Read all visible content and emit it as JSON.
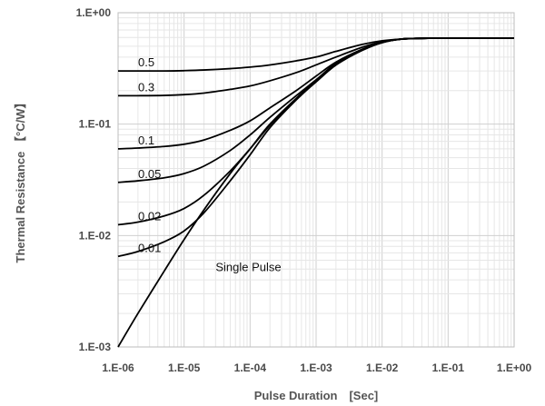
{
  "chart_data": {
    "type": "line",
    "title": "",
    "xlabel": "Pulse Duration　[Sec]",
    "ylabel": "Thermal Resistance 【°C/W】",
    "x_scale": "log",
    "y_scale": "log",
    "xlim": [
      1e-06,
      1
    ],
    "ylim": [
      0.001,
      1
    ],
    "grid": true,
    "x_tick_labels": [
      "1.E-06",
      "1.E-05",
      "1.E-04",
      "1.E-03",
      "1.E-02",
      "1.E-01",
      "1.E+00"
    ],
    "y_tick_labels": [
      "1.E-03",
      "1.E-02",
      "1.E-01",
      "1.E+00"
    ],
    "x": [
      1e-06,
      2e-06,
      5e-06,
      1e-05,
      2e-05,
      5e-05,
      0.0001,
      0.0002,
      0.0005,
      0.001,
      0.002,
      0.005,
      0.01,
      0.02,
      0.05,
      0.1,
      1
    ],
    "series": [
      {
        "name": "0.5",
        "values": [
          0.3,
          0.3,
          0.3,
          0.302,
          0.306,
          0.315,
          0.325,
          0.34,
          0.37,
          0.4,
          0.45,
          0.52,
          0.56,
          0.58,
          0.59,
          0.59,
          0.59
        ]
      },
      {
        "name": "0.3",
        "values": [
          0.18,
          0.18,
          0.181,
          0.184,
          0.19,
          0.205,
          0.22,
          0.245,
          0.29,
          0.34,
          0.4,
          0.49,
          0.55,
          0.58,
          0.59,
          0.59,
          0.59
        ]
      },
      {
        "name": "0.1",
        "values": [
          0.06,
          0.061,
          0.063,
          0.066,
          0.072,
          0.088,
          0.107,
          0.14,
          0.2,
          0.27,
          0.36,
          0.47,
          0.54,
          0.58,
          0.59,
          0.59,
          0.59
        ]
      },
      {
        "name": "0.05",
        "values": [
          0.03,
          0.031,
          0.033,
          0.036,
          0.042,
          0.058,
          0.08,
          0.115,
          0.18,
          0.25,
          0.35,
          0.465,
          0.54,
          0.58,
          0.59,
          0.59,
          0.59
        ]
      },
      {
        "name": "0.02",
        "values": [
          0.0125,
          0.0132,
          0.015,
          0.0175,
          0.023,
          0.038,
          0.06,
          0.098,
          0.17,
          0.245,
          0.345,
          0.46,
          0.54,
          0.58,
          0.59,
          0.59,
          0.59
        ]
      },
      {
        "name": "0.01",
        "values": [
          0.0065,
          0.0072,
          0.0088,
          0.011,
          0.016,
          0.031,
          0.053,
          0.093,
          0.165,
          0.24,
          0.34,
          0.46,
          0.54,
          0.58,
          0.59,
          0.59,
          0.59
        ]
      },
      {
        "name": "Single Pulse",
        "values": [
          0.001,
          0.002,
          0.0048,
          0.0092,
          0.017,
          0.036,
          0.06,
          0.1,
          0.17,
          0.24,
          0.34,
          0.46,
          0.54,
          0.58,
          0.59,
          0.59,
          0.59
        ]
      }
    ]
  }
}
